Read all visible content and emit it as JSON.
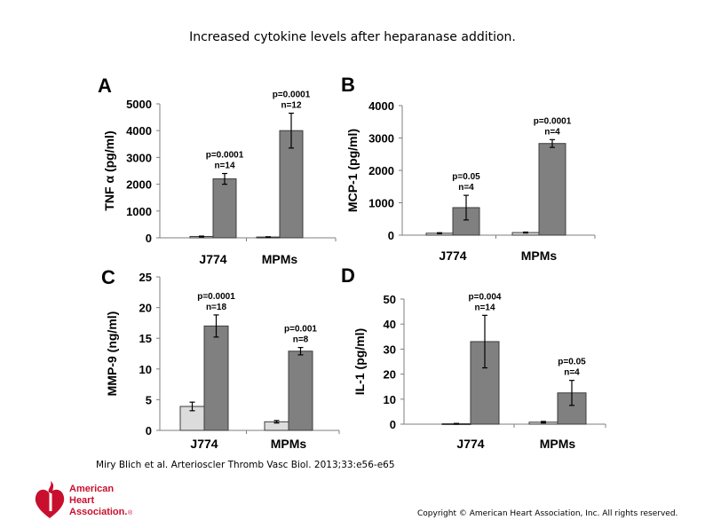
{
  "slide": {
    "title": "Increased cytokine levels after heparanase addition.",
    "citation": "Miry Blich et al. Arterioscler Thromb Vasc Biol. 2013;33:e56-e65",
    "copyright": "Copyright © American Heart Association, Inc. All rights reserved.",
    "logo": {
      "line1": "American",
      "line2": "Heart",
      "line3": "Association.",
      "mark": "®",
      "icon": "heart-torch-icon",
      "color": "#c8102e"
    }
  },
  "chart_data": [
    {
      "type": "bar",
      "panel": "A",
      "ylabel": "TNF α (pg/ml)",
      "ylim": [
        0,
        5000
      ],
      "yticks": [
        0,
        1000,
        2000,
        3000,
        4000,
        5000
      ],
      "categories": [
        "J774",
        "MPMs"
      ],
      "series": [
        {
          "color": "#dcdcdc",
          "values": [
            50,
            30
          ],
          "errors": [
            15,
            10
          ]
        },
        {
          "color": "#808080",
          "values": [
            2200,
            4000
          ],
          "errors": [
            200,
            650
          ]
        }
      ],
      "annotations": [
        {
          "category": 0,
          "lines": [
            "p=0.0001",
            "n=14"
          ]
        },
        {
          "category": 1,
          "lines": [
            "p=0.0001",
            "n=12"
          ]
        }
      ]
    },
    {
      "type": "bar",
      "panel": "B",
      "ylabel": "MCP-1 (pg/ml)",
      "ylim": [
        0,
        4000
      ],
      "yticks": [
        0,
        1000,
        2000,
        3000,
        4000
      ],
      "categories": [
        "J774",
        "MPMs"
      ],
      "series": [
        {
          "color": "#dcdcdc",
          "values": [
            60,
            80
          ],
          "errors": [
            15,
            15
          ]
        },
        {
          "color": "#808080",
          "values": [
            850,
            2830
          ],
          "errors": [
            380,
            120
          ]
        }
      ],
      "annotations": [
        {
          "category": 0,
          "lines": [
            "p=0.05",
            "n=4"
          ]
        },
        {
          "category": 1,
          "lines": [
            "p=0.0001",
            "n=4"
          ]
        }
      ]
    },
    {
      "type": "bar",
      "panel": "C",
      "ylabel": "MMP-9 (ng/ml)",
      "ylim": [
        0,
        25
      ],
      "yticks": [
        0,
        5,
        10,
        15,
        20,
        25
      ],
      "categories": [
        "J774",
        "MPMs"
      ],
      "series": [
        {
          "color": "#dcdcdc",
          "values": [
            3.9,
            1.4
          ],
          "errors": [
            0.7,
            0.2
          ]
        },
        {
          "color": "#808080",
          "values": [
            17.0,
            12.9
          ],
          "errors": [
            1.8,
            0.6
          ]
        }
      ],
      "annotations": [
        {
          "category": 0,
          "lines": [
            "p=0.0001",
            "n=18"
          ]
        },
        {
          "category": 1,
          "lines": [
            "p=0.001",
            "n=8"
          ]
        }
      ]
    },
    {
      "type": "bar",
      "panel": "D",
      "ylabel": "IL-1 (pg/ml)",
      "ylim": [
        0,
        50
      ],
      "yticks": [
        0,
        10,
        20,
        30,
        40,
        50
      ],
      "categories": [
        "J774",
        "MPMs"
      ],
      "series": [
        {
          "color": "#dcdcdc",
          "values": [
            0.2,
            0.8
          ],
          "errors": [
            0.1,
            0.3
          ]
        },
        {
          "color": "#808080",
          "values": [
            33,
            12.5
          ],
          "errors": [
            10.5,
            5
          ]
        }
      ],
      "annotations": [
        {
          "category": 0,
          "lines": [
            "p=0.004",
            "n=14"
          ]
        },
        {
          "category": 1,
          "lines": [
            "p=0.05",
            "n=4"
          ]
        }
      ]
    }
  ]
}
